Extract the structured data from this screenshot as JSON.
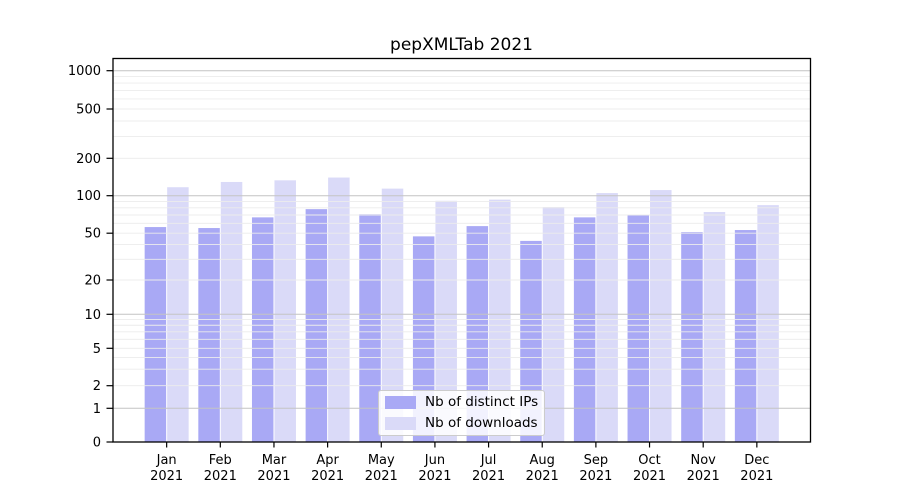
{
  "title": "pepXMLTab 2021",
  "colors": {
    "ips_bar": "#a9a9f5",
    "downloads_bar": "#dadaf8",
    "grid_major": "#c4c4c4",
    "grid_minor": "#ececec",
    "axis": "#000000",
    "background": "#ffffff"
  },
  "legend": {
    "items": [
      {
        "label": "Nb of distinct IPs",
        "series_index": 0
      },
      {
        "label": "Nb of downloads",
        "series_index": 1
      }
    ]
  },
  "chart_data": {
    "type": "bar",
    "title": "pepXMLTab 2021",
    "categories": [
      "Jan 2021",
      "Feb 2021",
      "Mar 2021",
      "Apr 2021",
      "May 2021",
      "Jun 2021",
      "Jul 2021",
      "Aug 2021",
      "Sep 2021",
      "Oct 2021",
      "Nov 2021",
      "Dec 2021"
    ],
    "series": [
      {
        "name": "Nb of distinct IPs",
        "color": "#a9a9f5",
        "values": [
          56,
          55,
          67,
          78,
          71,
          47,
          57,
          43,
          67,
          70,
          51,
          53
        ]
      },
      {
        "name": "Nb of downloads",
        "color": "#dadaf8",
        "values": [
          117,
          129,
          133,
          140,
          114,
          91,
          93,
          81,
          105,
          111,
          74,
          84
        ]
      }
    ],
    "y_ticks": [
      0,
      1,
      2,
      5,
      10,
      20,
      50,
      100,
      200,
      500,
      1000
    ],
    "ylabel": "",
    "xlabel": "",
    "scale": "log-like (pseudo-log, 0 included)",
    "ylim": [
      0,
      1250
    ],
    "grid": true,
    "legend_position": "inset bottom-center"
  }
}
